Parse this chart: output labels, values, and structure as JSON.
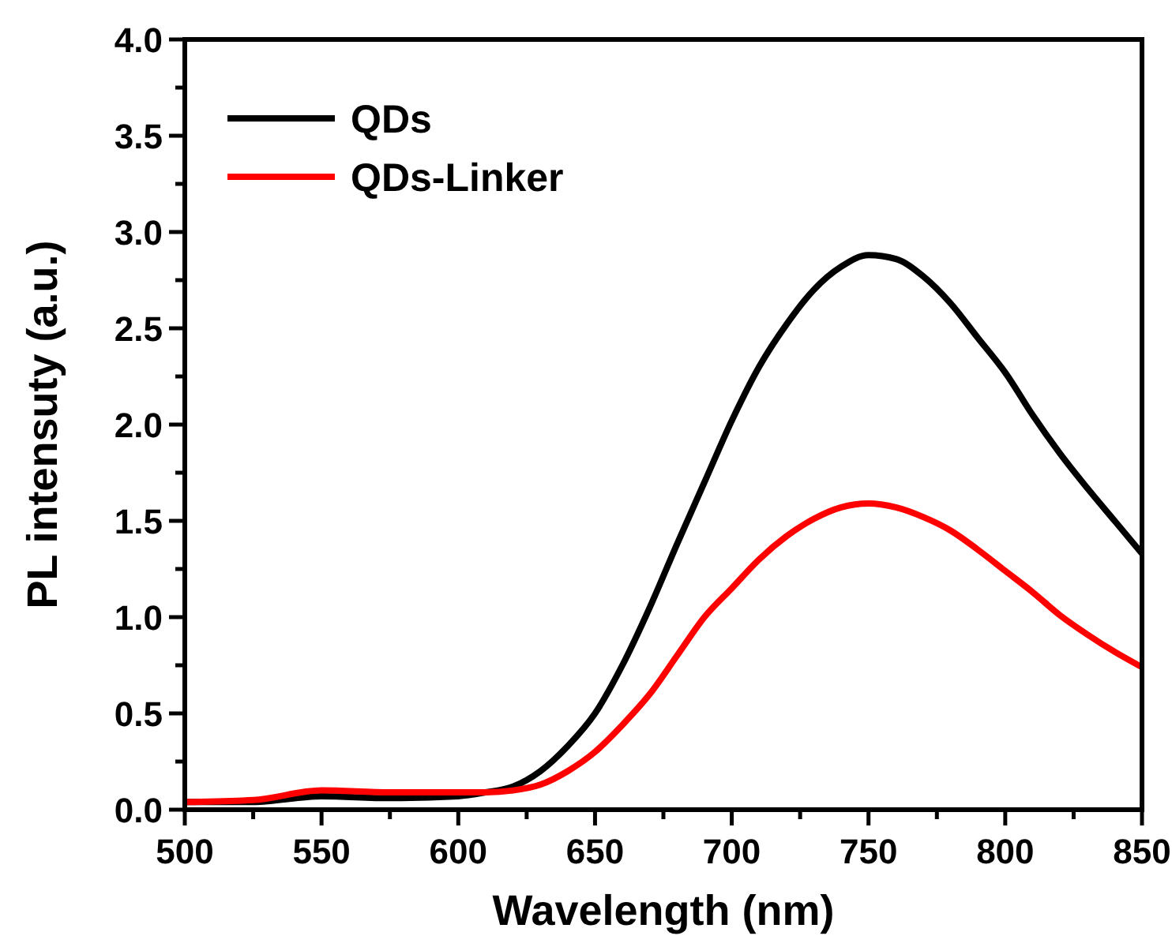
{
  "chart_data": {
    "type": "line",
    "xlabel": "Wavelength (nm)",
    "ylabel": "PL intensuty (a.u.)",
    "x": [
      500,
      525,
      550,
      575,
      600,
      610,
      620,
      630,
      640,
      650,
      660,
      670,
      680,
      690,
      700,
      710,
      720,
      730,
      740,
      750,
      760,
      770,
      780,
      790,
      800,
      810,
      820,
      830,
      840,
      850
    ],
    "series": [
      {
        "name": "QDs",
        "color": "#000000",
        "values": [
          0.04,
          0.04,
          0.07,
          0.06,
          0.07,
          0.09,
          0.12,
          0.2,
          0.33,
          0.5,
          0.75,
          1.05,
          1.38,
          1.7,
          2.02,
          2.3,
          2.52,
          2.7,
          2.82,
          2.88,
          2.86,
          2.77,
          2.63,
          2.45,
          2.27,
          2.05,
          1.85,
          1.67,
          1.5,
          1.33
        ]
      },
      {
        "name": "QDs-Linker",
        "color": "#ff0000",
        "values": [
          0.04,
          0.05,
          0.1,
          0.09,
          0.09,
          0.09,
          0.1,
          0.13,
          0.2,
          0.3,
          0.44,
          0.6,
          0.8,
          1.0,
          1.15,
          1.3,
          1.42,
          1.51,
          1.57,
          1.59,
          1.57,
          1.52,
          1.45,
          1.35,
          1.24,
          1.13,
          1.01,
          0.91,
          0.82,
          0.74
        ]
      }
    ],
    "xlim": [
      500,
      850
    ],
    "xticks": [
      500,
      {
        "value": 525,
        "label": null
      },
      550,
      {
        "value": 575,
        "label": null
      },
      600,
      {
        "value": 625,
        "label": null
      },
      650,
      {
        "value": 675,
        "label": null
      },
      700,
      {
        "value": 725,
        "label": null
      },
      750,
      {
        "value": 775,
        "label": null
      },
      800,
      {
        "value": 825,
        "label": null
      },
      850
    ],
    "ylim": [
      0,
      4
    ],
    "yticks": [
      {
        "value": 0,
        "label": "0.0"
      },
      {
        "value": 0.25,
        "label": null
      },
      {
        "value": 0.5,
        "label": "0.5"
      },
      {
        "value": 0.75,
        "label": null
      },
      {
        "value": 1,
        "label": "1.0"
      },
      {
        "value": 1.25,
        "label": null
      },
      {
        "value": 1.5,
        "label": "1.5"
      },
      {
        "value": 1.75,
        "label": null
      },
      {
        "value": 2,
        "label": "2.0"
      },
      {
        "value": 2.25,
        "label": null
      },
      {
        "value": 2.5,
        "label": "2.5"
      },
      {
        "value": 2.75,
        "label": null
      },
      {
        "value": 3,
        "label": "3.0"
      },
      {
        "value": 3.25,
        "label": null
      },
      {
        "value": 3.5,
        "label": "3.5"
      },
      {
        "value": 3.75,
        "label": null
      },
      {
        "value": 4,
        "label": "4.0"
      }
    ],
    "grid": false,
    "legend": "top left",
    "marker": "none",
    "line_style": "solid"
  }
}
